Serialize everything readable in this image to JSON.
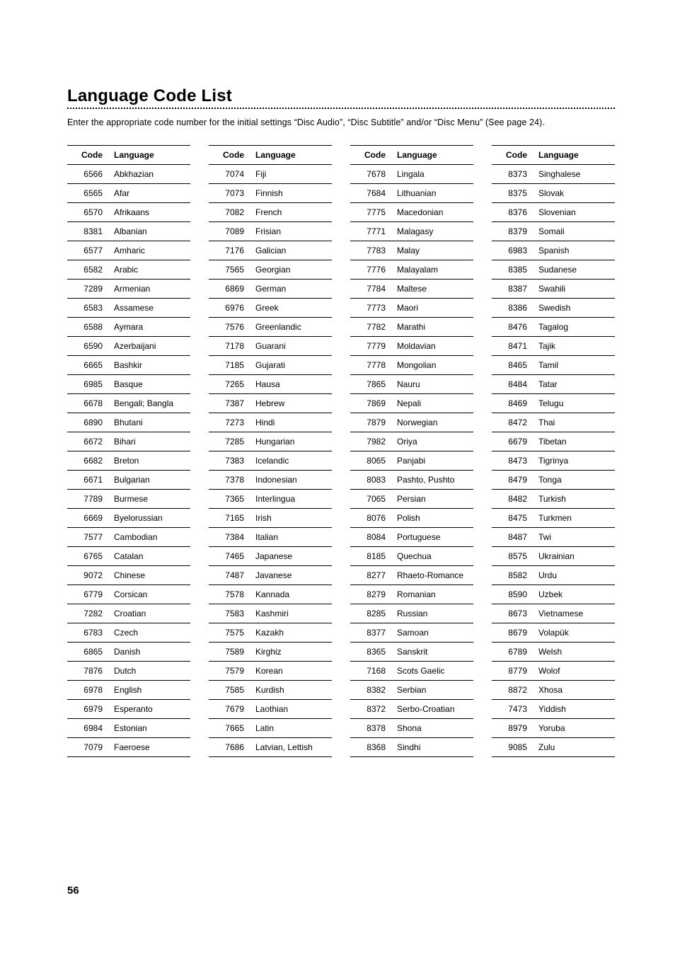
{
  "title": "Language Code List",
  "intro": "Enter the appropriate code number for the initial settings “Disc Audio”, “Disc Subtitle” and/or “Disc Menu” (See page 24).",
  "headers": {
    "code": "Code",
    "language": "Language"
  },
  "page_number": "56",
  "columns": [
    {
      "rows": [
        {
          "code": "6566",
          "lang": "Abkhazian"
        },
        {
          "code": "6565",
          "lang": "Afar"
        },
        {
          "code": "6570",
          "lang": "Afrikaans"
        },
        {
          "code": "8381",
          "lang": "Albanian"
        },
        {
          "code": "6577",
          "lang": "Amharic"
        },
        {
          "code": "6582",
          "lang": "Arabic"
        },
        {
          "code": "7289",
          "lang": "Armenian"
        },
        {
          "code": "6583",
          "lang": "Assamese"
        },
        {
          "code": "6588",
          "lang": "Aymara"
        },
        {
          "code": "6590",
          "lang": "Azerbaijani"
        },
        {
          "code": "6665",
          "lang": "Bashkir"
        },
        {
          "code": "6985",
          "lang": "Basque"
        },
        {
          "code": "6678",
          "lang": "Bengali; Bangla"
        },
        {
          "code": "6890",
          "lang": "Bhutani"
        },
        {
          "code": "6672",
          "lang": "Bihari"
        },
        {
          "code": "6682",
          "lang": "Breton"
        },
        {
          "code": "6671",
          "lang": "Bulgarian"
        },
        {
          "code": "7789",
          "lang": "Burmese"
        },
        {
          "code": "6669",
          "lang": "Byelorussian"
        },
        {
          "code": "7577",
          "lang": "Cambodian"
        },
        {
          "code": "6765",
          "lang": "Catalan"
        },
        {
          "code": "9072",
          "lang": "Chinese"
        },
        {
          "code": "6779",
          "lang": "Corsican"
        },
        {
          "code": "7282",
          "lang": "Croatian"
        },
        {
          "code": "6783",
          "lang": "Czech"
        },
        {
          "code": "6865",
          "lang": "Danish"
        },
        {
          "code": "7876",
          "lang": "Dutch"
        },
        {
          "code": "6978",
          "lang": "English"
        },
        {
          "code": "6979",
          "lang": "Esperanto"
        },
        {
          "code": "6984",
          "lang": "Estonian"
        },
        {
          "code": "7079",
          "lang": "Faeroese"
        }
      ]
    },
    {
      "rows": [
        {
          "code": "7074",
          "lang": "Fiji"
        },
        {
          "code": "7073",
          "lang": "Finnish"
        },
        {
          "code": "7082",
          "lang": "French"
        },
        {
          "code": "7089",
          "lang": "Frisian"
        },
        {
          "code": "7176",
          "lang": "Galician"
        },
        {
          "code": "7565",
          "lang": "Georgian"
        },
        {
          "code": "6869",
          "lang": "German"
        },
        {
          "code": "6976",
          "lang": "Greek"
        },
        {
          "code": "7576",
          "lang": "Greenlandic"
        },
        {
          "code": "7178",
          "lang": "Guarani"
        },
        {
          "code": "7185",
          "lang": "Gujarati"
        },
        {
          "code": "7265",
          "lang": "Hausa"
        },
        {
          "code": "7387",
          "lang": "Hebrew"
        },
        {
          "code": "7273",
          "lang": "Hindi"
        },
        {
          "code": "7285",
          "lang": "Hungarian"
        },
        {
          "code": "7383",
          "lang": "Icelandic"
        },
        {
          "code": "7378",
          "lang": "Indonesian"
        },
        {
          "code": "7365",
          "lang": "Interlingua"
        },
        {
          "code": "7165",
          "lang": "Irish"
        },
        {
          "code": "7384",
          "lang": "Italian"
        },
        {
          "code": "7465",
          "lang": "Japanese"
        },
        {
          "code": "7487",
          "lang": "Javanese"
        },
        {
          "code": "7578",
          "lang": "Kannada"
        },
        {
          "code": "7583",
          "lang": "Kashmiri"
        },
        {
          "code": "7575",
          "lang": "Kazakh"
        },
        {
          "code": "7589",
          "lang": "Kirghiz"
        },
        {
          "code": "7579",
          "lang": "Korean"
        },
        {
          "code": "7585",
          "lang": "Kurdish"
        },
        {
          "code": "7679",
          "lang": "Laothian"
        },
        {
          "code": "7665",
          "lang": "Latin"
        },
        {
          "code": "7686",
          "lang": "Latvian, Lettish"
        }
      ]
    },
    {
      "rows": [
        {
          "code": "7678",
          "lang": "Lingala"
        },
        {
          "code": "7684",
          "lang": "Lithuanian"
        },
        {
          "code": "7775",
          "lang": "Macedonian"
        },
        {
          "code": "7771",
          "lang": "Malagasy"
        },
        {
          "code": "7783",
          "lang": "Malay"
        },
        {
          "code": "7776",
          "lang": "Malayalam"
        },
        {
          "code": "7784",
          "lang": "Maltese"
        },
        {
          "code": "7773",
          "lang": "Maori"
        },
        {
          "code": "7782",
          "lang": "Marathi"
        },
        {
          "code": "7779",
          "lang": "Moldavian"
        },
        {
          "code": "7778",
          "lang": "Mongolian"
        },
        {
          "code": "7865",
          "lang": "Nauru"
        },
        {
          "code": "7869",
          "lang": "Nepali"
        },
        {
          "code": "7879",
          "lang": "Norwegian"
        },
        {
          "code": "7982",
          "lang": "Oriya"
        },
        {
          "code": "8065",
          "lang": "Panjabi"
        },
        {
          "code": "8083",
          "lang": "Pashto, Pushto"
        },
        {
          "code": "7065",
          "lang": "Persian"
        },
        {
          "code": "8076",
          "lang": "Polish"
        },
        {
          "code": "8084",
          "lang": "Portuguese"
        },
        {
          "code": "8185",
          "lang": "Quechua"
        },
        {
          "code": "8277",
          "lang": "Rhaeto-Romance"
        },
        {
          "code": "8279",
          "lang": "Romanian"
        },
        {
          "code": "8285",
          "lang": "Russian"
        },
        {
          "code": "8377",
          "lang": "Samoan"
        },
        {
          "code": "8365",
          "lang": "Sanskrit"
        },
        {
          "code": "7168",
          "lang": "Scots Gaelic"
        },
        {
          "code": "8382",
          "lang": "Serbian"
        },
        {
          "code": "8372",
          "lang": "Serbo-Croatian"
        },
        {
          "code": "8378",
          "lang": "Shona"
        },
        {
          "code": "8368",
          "lang": "Sindhi"
        }
      ]
    },
    {
      "rows": [
        {
          "code": "8373",
          "lang": "Singhalese"
        },
        {
          "code": "8375",
          "lang": "Slovak"
        },
        {
          "code": "8376",
          "lang": "Slovenian"
        },
        {
          "code": "8379",
          "lang": "Somali"
        },
        {
          "code": "6983",
          "lang": "Spanish"
        },
        {
          "code": "8385",
          "lang": "Sudanese"
        },
        {
          "code": "8387",
          "lang": "Swahili"
        },
        {
          "code": "8386",
          "lang": "Swedish"
        },
        {
          "code": "8476",
          "lang": "Tagalog"
        },
        {
          "code": "8471",
          "lang": "Tajik"
        },
        {
          "code": "8465",
          "lang": "Tamil"
        },
        {
          "code": "8484",
          "lang": "Tatar"
        },
        {
          "code": "8469",
          "lang": "Telugu"
        },
        {
          "code": "8472",
          "lang": "Thai"
        },
        {
          "code": "6679",
          "lang": "Tibetan"
        },
        {
          "code": "8473",
          "lang": "Tigrinya"
        },
        {
          "code": "8479",
          "lang": "Tonga"
        },
        {
          "code": "8482",
          "lang": "Turkish"
        },
        {
          "code": "8475",
          "lang": "Turkmen"
        },
        {
          "code": "8487",
          "lang": "Twi"
        },
        {
          "code": "8575",
          "lang": "Ukrainian"
        },
        {
          "code": "8582",
          "lang": "Urdu"
        },
        {
          "code": "8590",
          "lang": "Uzbek"
        },
        {
          "code": "8673",
          "lang": "Vietnamese"
        },
        {
          "code": "8679",
          "lang": "Volapük"
        },
        {
          "code": "6789",
          "lang": "Welsh"
        },
        {
          "code": "8779",
          "lang": "Wolof"
        },
        {
          "code": "8872",
          "lang": "Xhosa"
        },
        {
          "code": "7473",
          "lang": "Yiddish"
        },
        {
          "code": "8979",
          "lang": "Yoruba"
        },
        {
          "code": "9085",
          "lang": "Zulu"
        }
      ]
    }
  ]
}
